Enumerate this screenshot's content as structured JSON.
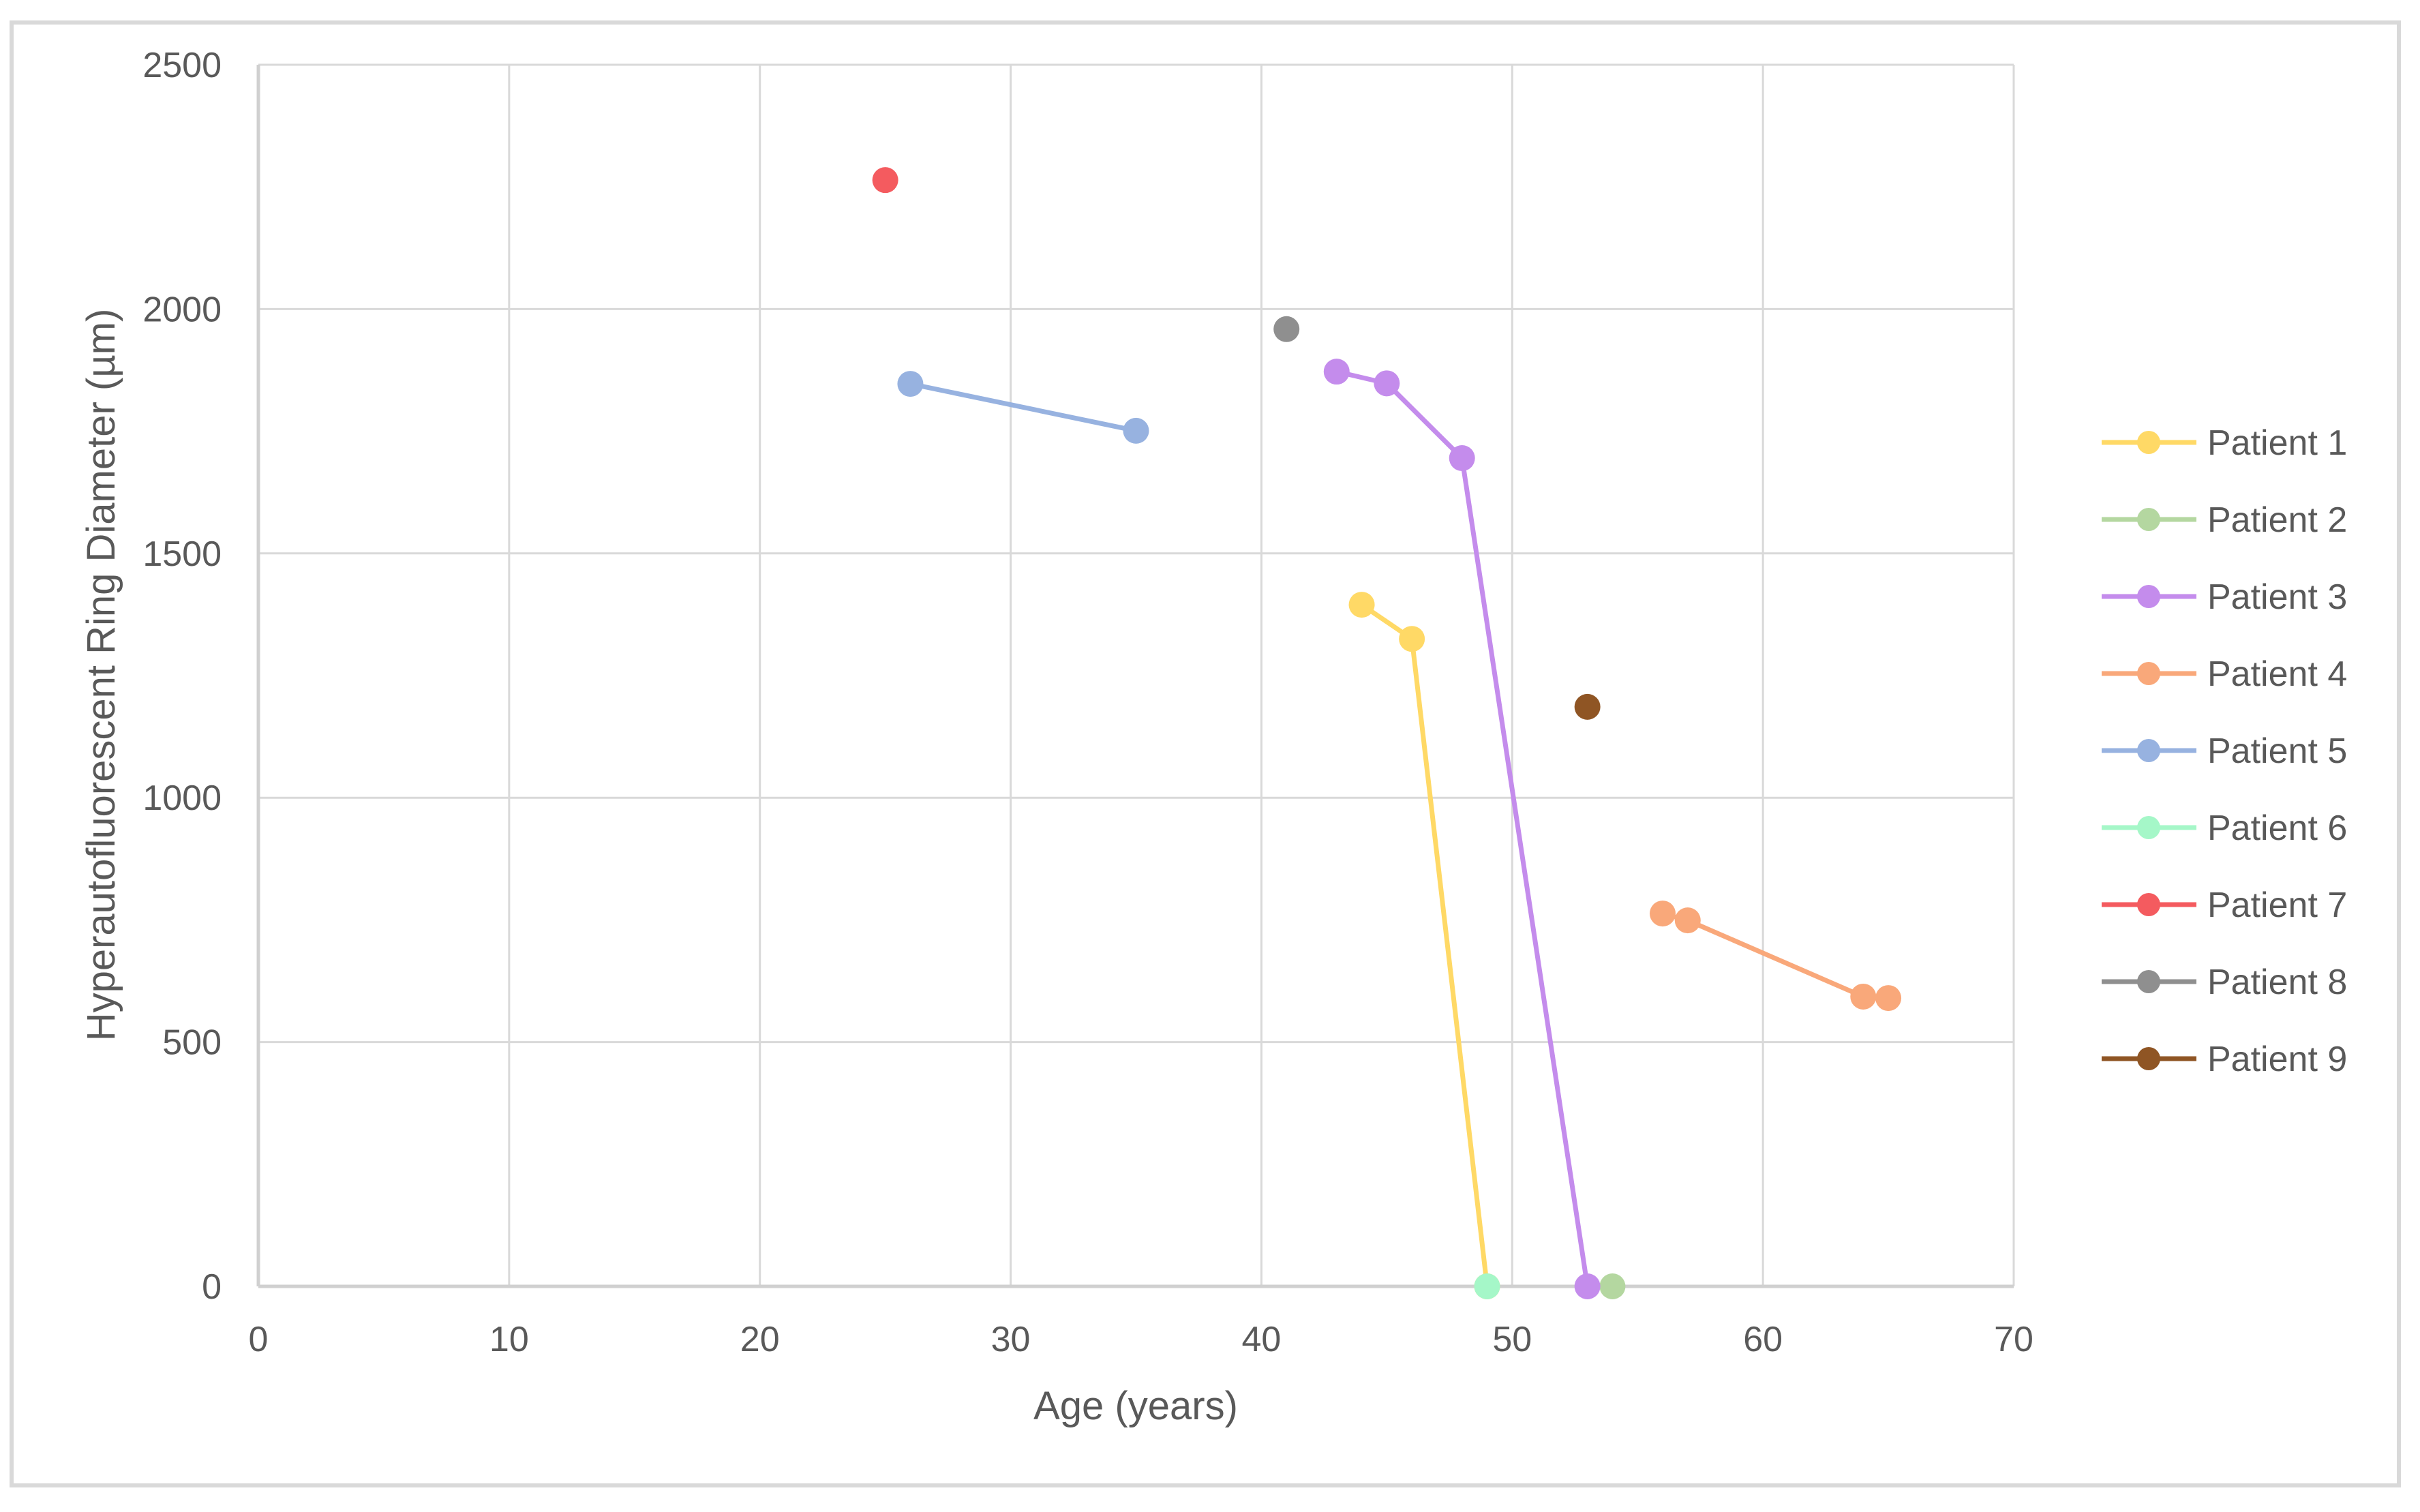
{
  "chart_data": {
    "type": "scatter",
    "subtype": "scatter-with-lines-and-markers",
    "title": "",
    "xlabel": "Age (years)",
    "ylabel": "Hyperautofluorescent  Ring Diameter (µm)",
    "xlim": [
      0,
      70
    ],
    "ylim": [
      0,
      2500
    ],
    "xticks": [
      0,
      10,
      20,
      30,
      40,
      50,
      60,
      70
    ],
    "yticks": [
      0,
      500,
      1000,
      1500,
      2000,
      2500
    ],
    "grid": true,
    "legend_position": "right",
    "series": [
      {
        "name": "Patient 1",
        "color": "#FFD966",
        "points": [
          [
            44,
            1395
          ],
          [
            46,
            1325
          ],
          [
            49,
            0
          ]
        ]
      },
      {
        "name": "Patient 2",
        "color": "#B4D7A0",
        "points": [
          [
            54,
            0
          ]
        ]
      },
      {
        "name": "Patient 3",
        "color": "#C48CEC",
        "points": [
          [
            43,
            1872
          ],
          [
            45,
            1848
          ],
          [
            48,
            1695
          ],
          [
            53,
            0
          ]
        ]
      },
      {
        "name": "Patient 4",
        "color": "#F9A87A",
        "points": [
          [
            56,
            763
          ],
          [
            57,
            749
          ],
          [
            64,
            593
          ],
          [
            65,
            590
          ]
        ]
      },
      {
        "name": "Patient 5",
        "color": "#97B2E0",
        "points": [
          [
            26,
            1847
          ],
          [
            35,
            1751
          ]
        ]
      },
      {
        "name": "Patient 6",
        "color": "#A5F7C8",
        "points": [
          [
            49,
            0
          ]
        ]
      },
      {
        "name": "Patient 7",
        "color": "#F45B5F",
        "points": [
          [
            25,
            2264
          ]
        ]
      },
      {
        "name": "Patient 8",
        "color": "#8F8F8F",
        "points": [
          [
            41,
            1959
          ]
        ]
      },
      {
        "name": "Patient 9",
        "color": "#8F5524",
        "points": [
          [
            53,
            1186
          ]
        ]
      }
    ]
  },
  "axes": {
    "x_title": "Age (years)",
    "y_title": "Hyperautofluorescent  Ring Diameter (µm)",
    "x_tick_labels": [
      "0",
      "10",
      "20",
      "30",
      "40",
      "50",
      "60",
      "70"
    ],
    "y_tick_labels": [
      "0",
      "500",
      "1000",
      "1500",
      "2000",
      "2500"
    ]
  },
  "legend": {
    "items": [
      "Patient 1",
      "Patient 2",
      "Patient 3",
      "Patient 4",
      "Patient 5",
      "Patient 6",
      "Patient 7",
      "Patient 8",
      "Patient 9"
    ]
  }
}
